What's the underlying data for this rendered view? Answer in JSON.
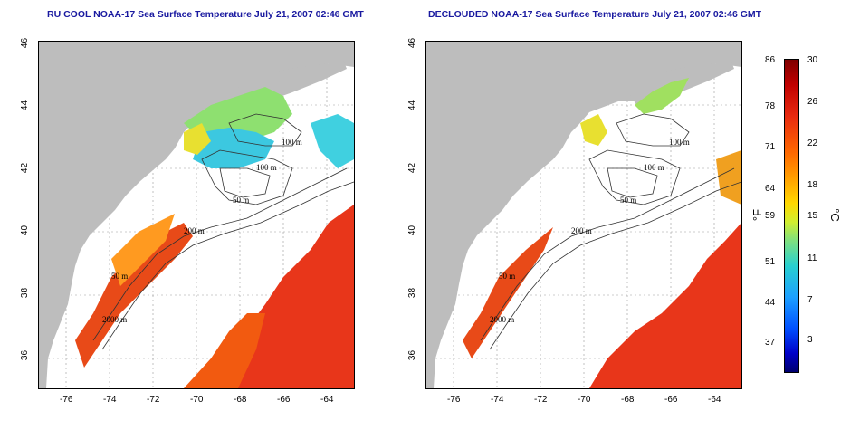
{
  "titles": {
    "left": "RU COOL NOAA-17 Sea Surface Temperature July 21, 2007 02:46 GMT",
    "right": "DECLOUDED NOAA-17 Sea Surface Temperature July 21, 2007 02:46 GMT"
  },
  "axes": {
    "lon_labels": [
      "-76",
      "-74",
      "-72",
      "-70",
      "-68",
      "-66",
      "-64"
    ],
    "lat_labels": [
      "46",
      "44",
      "42",
      "40",
      "38",
      "36"
    ]
  },
  "contours": {
    "labels_left": [
      "100 m",
      "100 m",
      "50 m",
      "200 m",
      "50 m",
      "2000 m"
    ],
    "labels_right": [
      "100 m",
      "100 m",
      "50 m",
      "200 m",
      "50 m",
      "2000 m"
    ]
  },
  "colorbar": {
    "fahrenheit_labels": [
      "86",
      "78",
      "71",
      "64",
      "59",
      "51",
      "44",
      "37"
    ],
    "celsius_labels": [
      "30",
      "26",
      "22",
      "18",
      "15",
      "11",
      "7",
      "3"
    ],
    "unit_f": "°F",
    "unit_c": "°C"
  },
  "colors": {
    "land": "#bdbdbd",
    "title": "#1a1aa0",
    "ocean_missing": "#ffffff"
  }
}
